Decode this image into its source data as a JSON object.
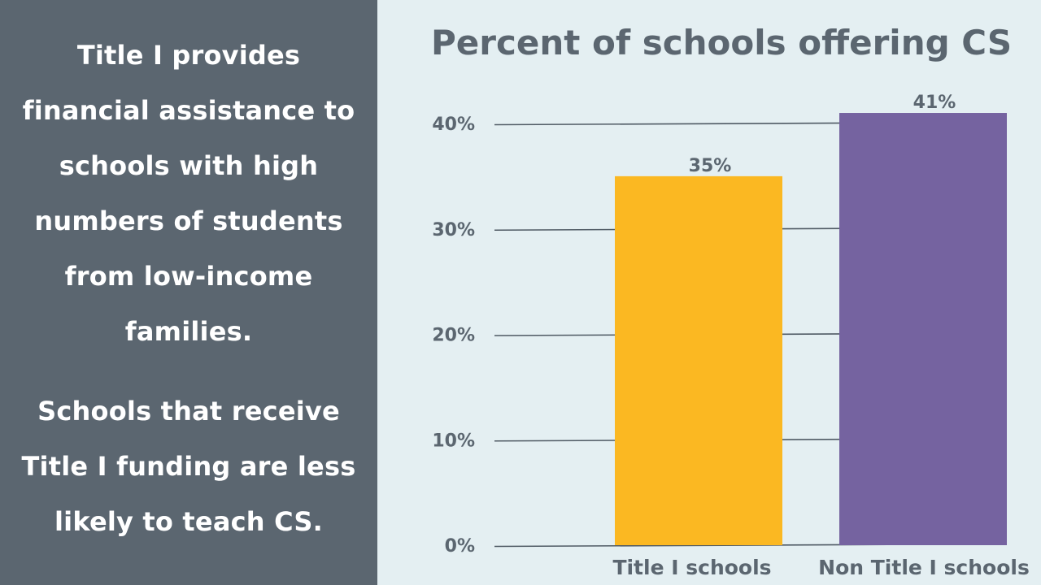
{
  "sidebar": {
    "paragraph1": "Title I provides financial assistance to schools with high numbers of students from low-income families.",
    "paragraph2": "Schools that receive Title I funding are less likely to teach CS."
  },
  "colors": {
    "sidebar_bg": "#5b6670",
    "chart_bg": "#e4eff2",
    "text_dark": "#5b6670",
    "title_i_bar": "#fbb822",
    "non_title_i_bar": "#7563a0"
  },
  "chart_data": {
    "type": "bar",
    "title": "Percent of schools offering CS",
    "categories": [
      "Title I schools",
      "Non Title I schools"
    ],
    "values": [
      35,
      41
    ],
    "data_labels": [
      "35%",
      "41%"
    ],
    "bar_colors": [
      "#fbb822",
      "#7563a0"
    ],
    "yticks": [
      0,
      10,
      20,
      30,
      40
    ],
    "ytick_labels": [
      "0%",
      "10%",
      "20%",
      "30%",
      "40%"
    ],
    "ylim": [
      0,
      40
    ],
    "xlabel": "",
    "ylabel": "",
    "grid": true,
    "legend": "none"
  }
}
